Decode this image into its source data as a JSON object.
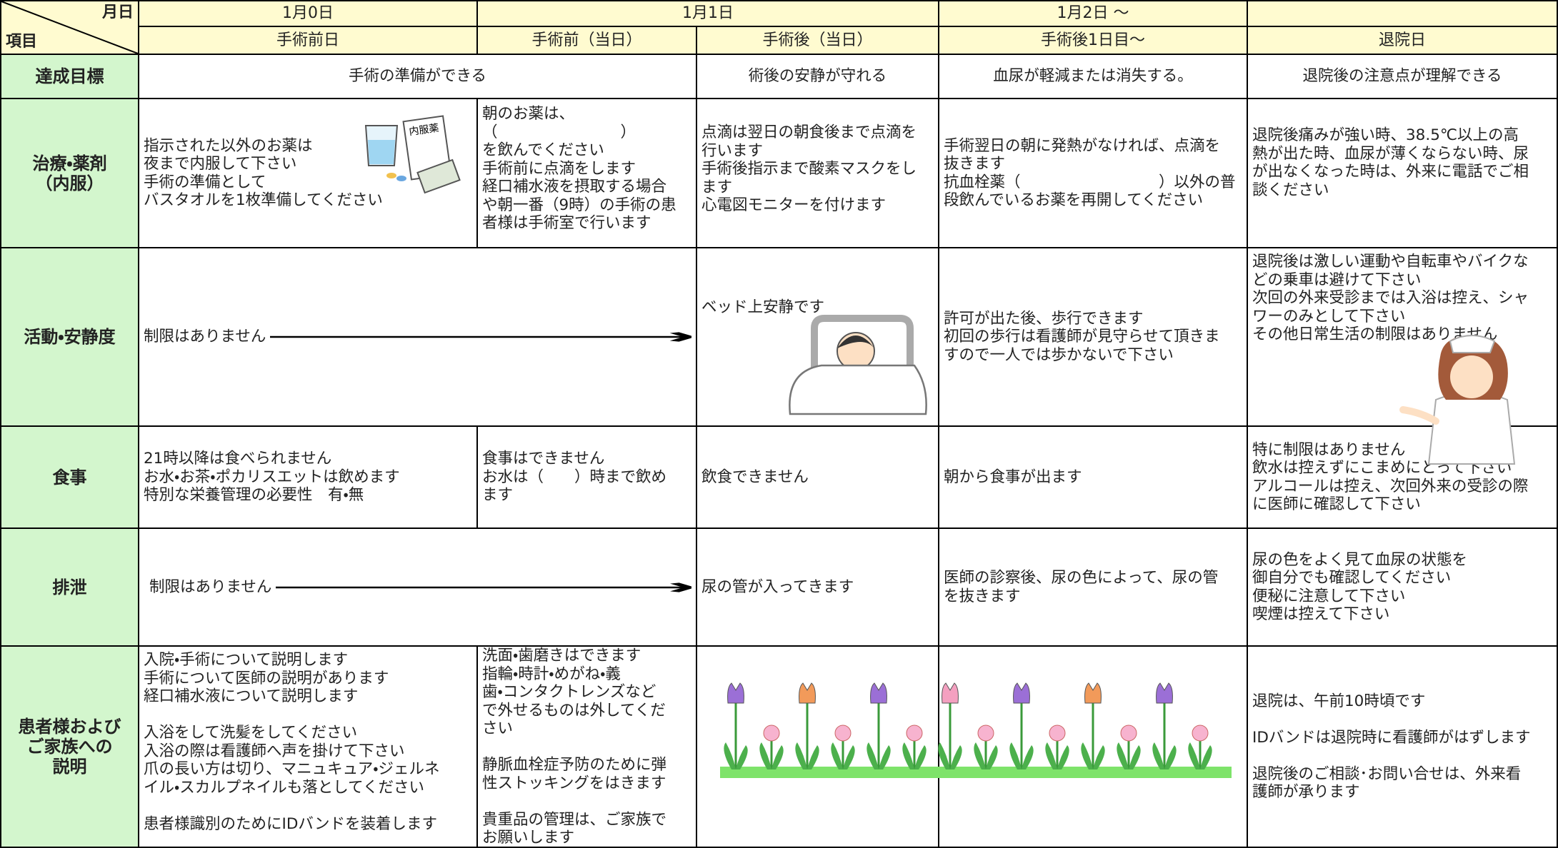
{
  "header": {
    "month_day": "月日",
    "item": "項目",
    "dates": [
      "1月0日",
      "1月1日",
      "1月2日 ～"
    ],
    "phases": [
      "手術前日",
      "手術前（当日）",
      "手術後（当日）",
      "手術後1日目～",
      "退院日"
    ]
  },
  "rows": [
    {
      "label": "達成目標",
      "cells": [
        "手術の準備ができる",
        "術後の安静が守れる",
        "血尿が軽減または消失する。",
        "退院後の注意点が理解できる"
      ]
    },
    {
      "label": "治療・薬剤\n（内服）",
      "cells": [
        "指示された以外のお薬は\n夜まで内服して下さい\n手術の準備として\nバスタオルを1枚準備してください",
        "朝のお薬は、\n（　　　　　　　　）\nを飲んでください\n手術前に点滴をします\n経口補水液を摂取する場合\nや朝一番（9時）の手術の患\n者様は手術室で行います",
        "点滴は翌日の朝食後まで点滴を\n行います\n手術後指示まで酸素マスクをし\nます\n心電図モニターを付けます",
        "手術翌日の朝に発熱がなければ、点滴を\n抜きます\n抗血栓薬（　　　　　　　　　）以外の普\n段飲んでいるお薬を再開してください",
        "退院後痛みが強い時、38.5℃以上の高\n熱が出た時、血尿が薄くならない時、尿\nが出なくなった時は、外来に電話でご相\n談ください"
      ]
    },
    {
      "label": "活動・安静度",
      "cells": [
        "制限はありません",
        "ベッド上安静です",
        "許可が出た後、歩行できます\n初回の歩行は看護師が見守らせて頂きま\nすので一人では歩かないで下さい",
        "退院後は激しい運動や自転車やバイクな\nどの乗車は避けて下さい\n次回の外来受診までは入浴は控え、シャ\nワーのみとして下さい\nその他日常生活の制限はありません"
      ]
    },
    {
      "label": "食事",
      "cells": [
        "21時以降は食べられません\nお水・お茶・ポカリスエットは飲めます\n特別な栄養管理の必要性　有・無",
        "食事はできません\nお水は（　　）時まで飲め\nます",
        "飲食できません",
        "朝から食事が出ます",
        "特に制限はありません\n飲水は控えずにこまめにとって下さい\nアルコールは控え、次回外来の受診の際\nに医師に確認して下さい"
      ]
    },
    {
      "label": "排泄",
      "cells": [
        "制限はありません",
        "尿の管が入ってきます",
        "医師の診察後、尿の色によって、尿の管\nを抜きます",
        "尿の色をよく見て血尿の状態を\n御自分でも確認してください\n便秘に注意して下さい\n喫煙は控えて下さい"
      ]
    },
    {
      "label": "患者様および\nご家族への\n説明",
      "cells": [
        "入院・手術について説明します\n手術について医師の説明があります\n経口補水液について説明します\n\n入浴をして洗髪をしてください\n入浴の際は看護師へ声を掛けて下さい\n爪の長い方は切り、マニュキュア・ジェルネ\nイル・スカルプネイルも落としてください\n\n患者様識別のためにIDバンドを装着します",
        "洗面・歯磨きはできます\n指輪・時計・めがね・義\n歯・コンタクトレンズなど\nで外せるものは外してくだ\nさい\n\n静脈血栓症予防のために弾\n性ストッキングをはきます\n\n貴重品の管理は、ご家族で\nお願いします",
        "退院は、午前10時頃です\n\nIDバンドは退院時に看護師がはずします\n\n退院後のご相談･お問い合せは、外来看\n護師が承ります"
      ]
    }
  ],
  "illustrations": {
    "medicine_bag": "内服薬"
  }
}
